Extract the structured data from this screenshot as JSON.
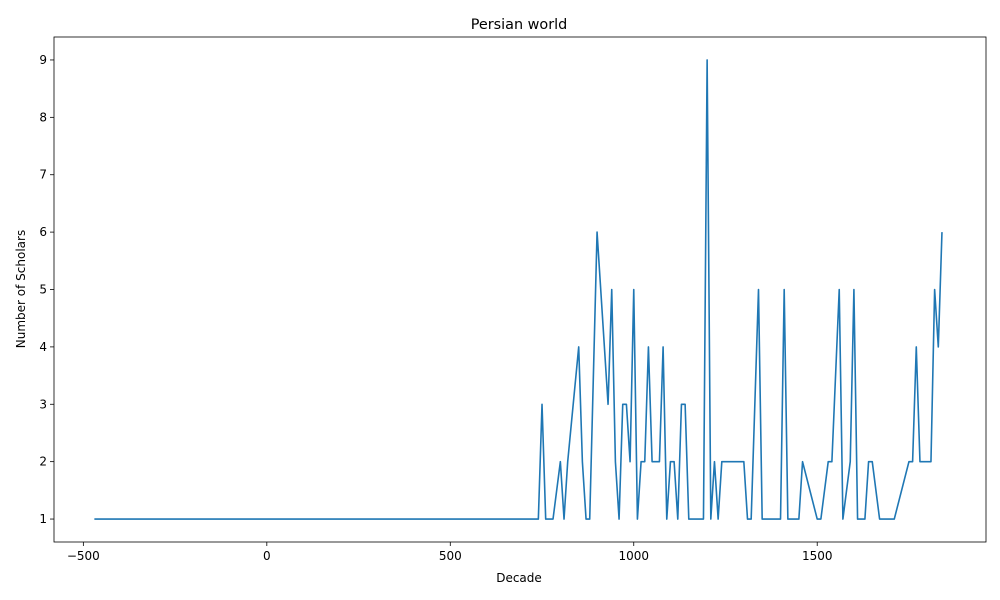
{
  "chart_data": {
    "type": "line",
    "title": "Persian world",
    "xlabel": "Decade",
    "ylabel": "Number of Scholars",
    "xlim": [
      -580,
      1960
    ],
    "ylim": [
      0.6,
      9.4
    ],
    "xticks": [
      -500,
      0,
      500,
      1000,
      1500
    ],
    "yticks": [
      1,
      2,
      3,
      4,
      5,
      6,
      7,
      8,
      9
    ],
    "grid": false,
    "legend": "none",
    "series": [
      {
        "color": "#1f77b4",
        "x": [
          -470,
          740,
          750,
          760,
          780,
          800,
          810,
          820,
          850,
          860,
          870,
          880,
          900,
          930,
          940,
          950,
          960,
          970,
          980,
          990,
          1000,
          1010,
          1020,
          1030,
          1040,
          1050,
          1070,
          1080,
          1090,
          1100,
          1110,
          1120,
          1130,
          1140,
          1150,
          1160,
          1170,
          1180,
          1190,
          1200,
          1210,
          1220,
          1230,
          1240,
          1250,
          1260,
          1270,
          1280,
          1290,
          1300,
          1310,
          1320,
          1340,
          1350,
          1360,
          1380,
          1400,
          1410,
          1420,
          1430,
          1450,
          1460,
          1500,
          1510,
          1530,
          1540,
          1560,
          1570,
          1590,
          1600,
          1610,
          1620,
          1630,
          1640,
          1650,
          1670,
          1680,
          1700,
          1710,
          1750,
          1760,
          1770,
          1780,
          1790,
          1810,
          1820,
          1830,
          1840
        ],
        "values": [
          1,
          1,
          3,
          1,
          1,
          2,
          1,
          2,
          4,
          2,
          1,
          1,
          6,
          3,
          5,
          2,
          1,
          3,
          3,
          2,
          5,
          1,
          2,
          2,
          4,
          2,
          2,
          4,
          1,
          2,
          2,
          1,
          3,
          3,
          1,
          1,
          1,
          1,
          1,
          9,
          1,
          2,
          1,
          2,
          2,
          2,
          2,
          2,
          2,
          2,
          1,
          1,
          5,
          1,
          1,
          1,
          1,
          5,
          1,
          1,
          1,
          2,
          1,
          1,
          2,
          2,
          5,
          1,
          2,
          5,
          1,
          1,
          1,
          2,
          2,
          1,
          1,
          1,
          1,
          2,
          2,
          4,
          2,
          2,
          2,
          5,
          4,
          6
        ]
      }
    ]
  }
}
